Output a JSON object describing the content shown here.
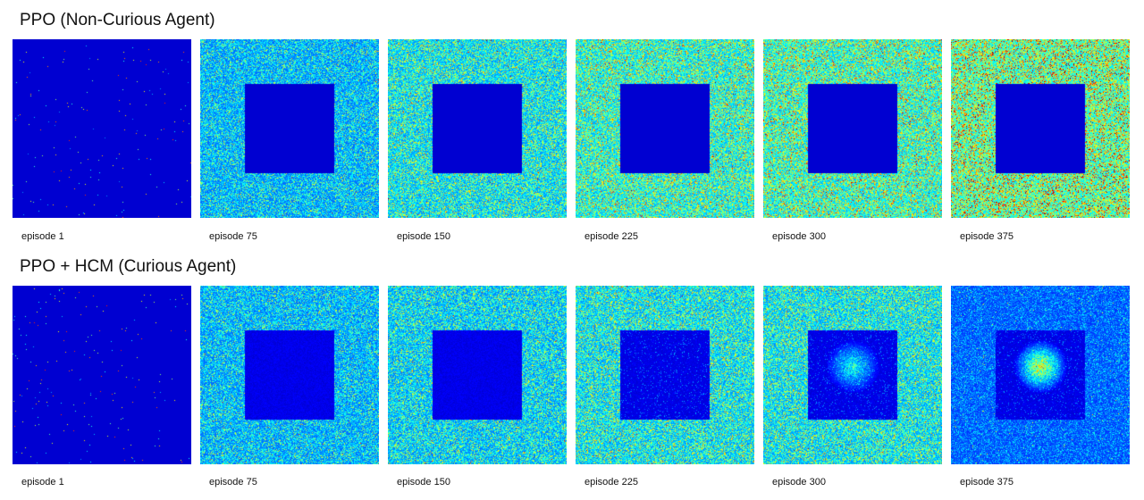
{
  "rows": [
    {
      "title": "PPO (Non-Curious Agent)",
      "panels": [
        {
          "caption": "episode 1",
          "density": 0.03,
          "inner": "empty",
          "hotspot": 0
        },
        {
          "caption": "episode 75",
          "density": 0.4,
          "inner": "empty",
          "hotspot": 0
        },
        {
          "caption": "episode 150",
          "density": 0.5,
          "inner": "empty",
          "hotspot": 0
        },
        {
          "caption": "episode 225",
          "density": 0.58,
          "inner": "empty",
          "hotspot": 0
        },
        {
          "caption": "episode 300",
          "density": 0.62,
          "inner": "empty",
          "hotspot": 0
        },
        {
          "caption": "episode 375",
          "density": 0.72,
          "inner": "empty",
          "hotspot": 0
        }
      ]
    },
    {
      "title": "PPO + HCM (Curious Agent)",
      "panels": [
        {
          "caption": "episode 1",
          "density": 0.03,
          "inner": "empty",
          "hotspot": 0
        },
        {
          "caption": "episode 75",
          "density": 0.4,
          "inner": "faint",
          "hotspot": 0
        },
        {
          "caption": "episode 150",
          "density": 0.45,
          "inner": "faint",
          "hotspot": 0
        },
        {
          "caption": "episode 225",
          "density": 0.5,
          "inner": "trails",
          "hotspot": 0
        },
        {
          "caption": "episode 300",
          "density": 0.5,
          "inner": "trails",
          "hotspot": 0.6
        },
        {
          "caption": "episode 375",
          "density": 0.25,
          "inner": "trails",
          "hotspot": 1.0
        }
      ]
    }
  ],
  "colors": {
    "background": "#0a0f8a",
    "colormap": "jet"
  }
}
